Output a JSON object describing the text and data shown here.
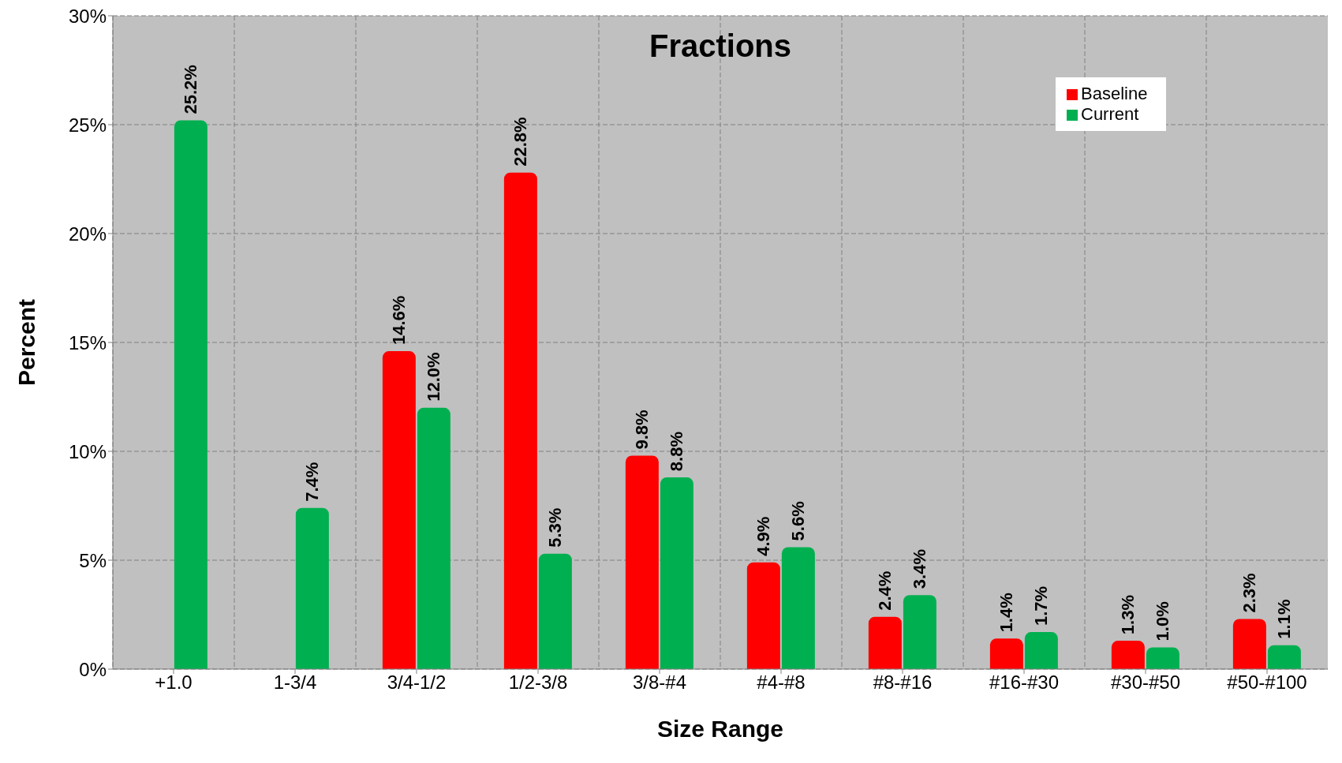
{
  "chart_data": {
    "type": "bar",
    "title": "Fractions",
    "xlabel": "Size Range",
    "ylabel": "Percent",
    "categories": [
      "+1.0",
      "1-3/4",
      "3/4-1/2",
      "1/2-3/8",
      "3/8-#4",
      "#4-#8",
      "#8-#16",
      "#16-#30",
      "#30-#50",
      "#50-#100"
    ],
    "series": [
      {
        "name": "Baseline",
        "color": "#ff0000",
        "values": [
          null,
          null,
          14.6,
          22.8,
          9.8,
          4.9,
          2.4,
          1.4,
          1.3,
          2.3
        ],
        "value_labels": [
          null,
          null,
          "14.6%",
          "22.8%",
          "9.8%",
          "4.9%",
          "2.4%",
          "1.4%",
          "1.3%",
          "2.3%"
        ]
      },
      {
        "name": "Current",
        "color": "#00b050",
        "values": [
          25.2,
          7.4,
          12.0,
          5.3,
          8.8,
          5.6,
          3.4,
          1.7,
          1.0,
          1.1
        ],
        "value_labels": [
          "25.2%",
          "7.4%",
          "12.0%",
          "5.3%",
          "8.8%",
          "5.6%",
          "3.4%",
          "1.7%",
          "1.0%",
          "1.1%"
        ]
      }
    ],
    "ylim": [
      0,
      30
    ],
    "yticks": [
      {
        "value": 0,
        "label": "0%"
      },
      {
        "value": 5,
        "label": "5%"
      },
      {
        "value": 10,
        "label": "10%"
      },
      {
        "value": 15,
        "label": "15%"
      },
      {
        "value": 20,
        "label": "20%"
      },
      {
        "value": 25,
        "label": "25%"
      },
      {
        "value": 30,
        "label": "30%"
      }
    ],
    "grid": true,
    "legend": "top right"
  }
}
